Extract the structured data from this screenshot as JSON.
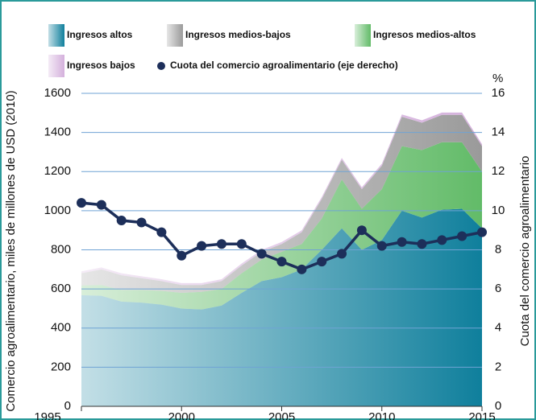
{
  "chart_data": {
    "type": "stacked_area_line",
    "ylabel": "Comercio agroalimentario, miles de millones de USD (2010)",
    "y2label": "Cuota del comercio agroalimentario",
    "y2unit": "%",
    "x": [
      1995,
      1996,
      1997,
      1998,
      1999,
      2000,
      2001,
      2002,
      2003,
      2004,
      2005,
      2006,
      2007,
      2008,
      2009,
      2010,
      2011,
      2012,
      2013,
      2014,
      2015
    ],
    "xlim": [
      1995,
      2015
    ],
    "xticks": [
      1995,
      2000,
      2005,
      2010,
      2015
    ],
    "ylim": [
      0,
      1600
    ],
    "yticks": [
      0,
      200,
      400,
      600,
      800,
      1000,
      1200,
      1400,
      1600
    ],
    "y2lim": [
      0,
      16
    ],
    "y2ticks": [
      0,
      2,
      4,
      6,
      8,
      10,
      12,
      14,
      16
    ],
    "grid": true,
    "series": [
      {
        "name": "Ingresos altos",
        "color": "#0f7f9c",
        "values": [
          568,
          565,
          535,
          530,
          520,
          500,
          495,
          515,
          580,
          640,
          660,
          700,
          800,
          910,
          800,
          850,
          1000,
          965,
          1005,
          1010,
          910
        ]
      },
      {
        "name": "Ingresos medios-altos",
        "color": "#62bb68",
        "values": [
          50,
          55,
          60,
          65,
          70,
          80,
          90,
          85,
          100,
          110,
          130,
          130,
          160,
          250,
          210,
          260,
          330,
          345,
          345,
          340,
          290
        ]
      },
      {
        "name": "Ingresos medios-bajos",
        "color": "#9a9a9a",
        "values": [
          62,
          80,
          75,
          60,
          50,
          40,
          35,
          40,
          40,
          40,
          40,
          60,
          100,
          100,
          100,
          120,
          150,
          140,
          140,
          140,
          130
        ]
      },
      {
        "name": "Ingresos bajos",
        "color": "#d4b0dc",
        "values": [
          10,
          10,
          10,
          10,
          10,
          10,
          10,
          10,
          10,
          10,
          10,
          10,
          10,
          10,
          10,
          10,
          12,
          12,
          12,
          12,
          10
        ]
      },
      {
        "name": "Cuota del comercio agroalimentario (eje derecho)",
        "color": "#1d2f5a",
        "axis": "y2",
        "values": [
          10.4,
          10.3,
          9.5,
          9.4,
          8.9,
          7.7,
          8.2,
          8.3,
          8.3,
          7.8,
          7.4,
          7.0,
          7.4,
          7.8,
          9.0,
          8.2,
          8.4,
          8.3,
          8.5,
          8.7,
          8.9
        ]
      }
    ]
  }
}
